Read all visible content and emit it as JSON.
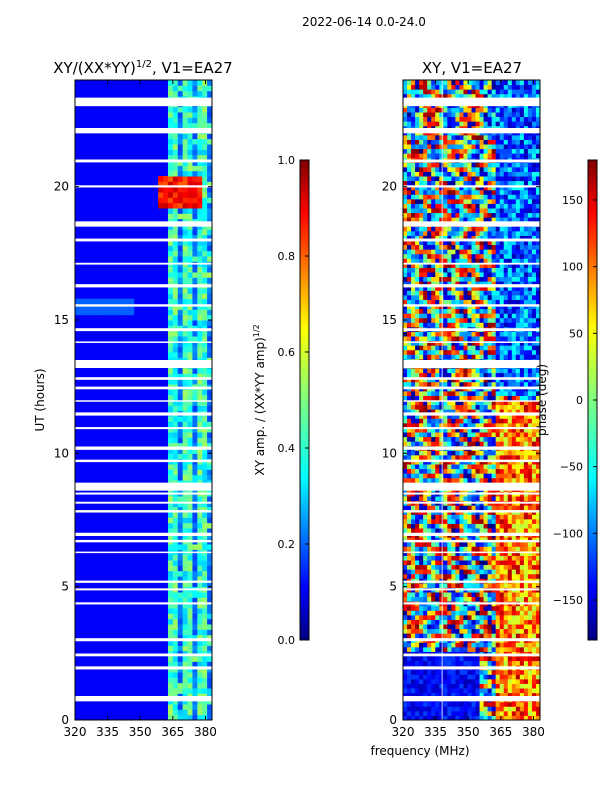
{
  "suptitle": "2022-06-14 0.0-24.0",
  "chart_data": [
    {
      "type": "heatmap",
      "title_main": "XY/(XX*YY)",
      "title_sup": "1/2",
      "title_tail": ", V1=EA27",
      "ylabel": "UT (hours)",
      "xlabel": "",
      "xlim": [
        320,
        383
      ],
      "ylim": [
        0,
        24
      ],
      "x_ticks": [
        320,
        335,
        350,
        365,
        380
      ],
      "y_ticks": [
        0,
        5,
        10,
        15,
        20
      ],
      "colorbar": {
        "label_main": "XY amp. / (XX*YY amp)",
        "label_sup": "1/2",
        "range": [
          0.0,
          1.0
        ],
        "ticks": [
          "0.0",
          "0.2",
          "0.4",
          "0.6",
          "0.8",
          "1.0"
        ]
      }
    },
    {
      "type": "heatmap",
      "title_main": "XY, V1=EA27",
      "ylabel": "",
      "xlabel": "frequency (MHz)",
      "xlim": [
        320,
        383
      ],
      "ylim": [
        0,
        24
      ],
      "x_ticks": [
        320,
        335,
        350,
        365,
        380
      ],
      "y_ticks": [
        0,
        5,
        10,
        15,
        20
      ],
      "colorbar": {
        "label_main": "phase (deg)",
        "range": [
          -180,
          180
        ],
        "ticks": [
          "150",
          "100",
          "50",
          "0",
          "−50",
          "−100",
          "−150"
        ]
      }
    }
  ],
  "colors": {
    "colormap": [
      "#00007f",
      "#0000ff",
      "#007fff",
      "#00ffff",
      "#7fff7f",
      "#ffff00",
      "#ff7f00",
      "#ff0000",
      "#7f0000"
    ],
    "background_gaps": "#ffffff"
  }
}
